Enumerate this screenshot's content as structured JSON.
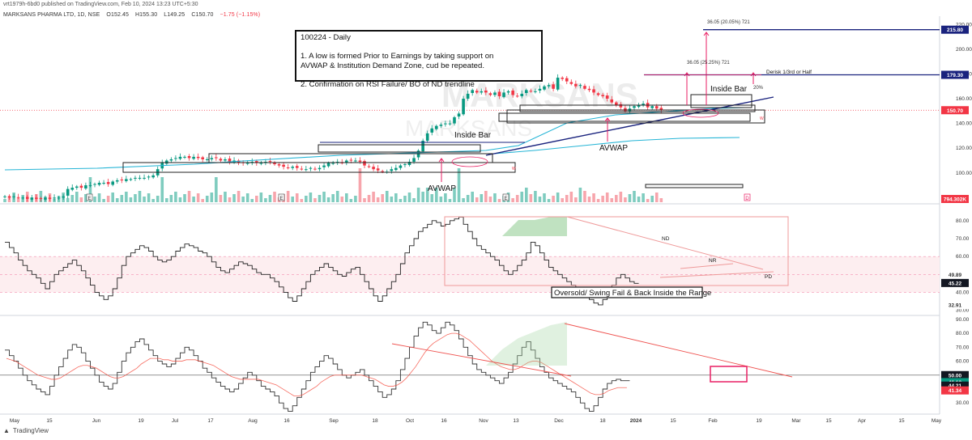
{
  "header": {
    "published": "vrt1979h-6bd0 published on TradingView.com, Feb 10, 2024 13:23 UTC+5:30",
    "symbol": "MARKSANS PHARMA LTD, 1D, NSE",
    "open": "O152.45",
    "high": "H155.30",
    "low": "L149.25",
    "close": "C150.70",
    "change": "−1.75 (−1.15%)"
  },
  "watermark": "MARKSANS",
  "note": {
    "title": "100224 - Daily",
    "line1a": "1. A low is formed Prior to Earnings by taking support on",
    "line1b": "AVWAP & Institution Demand Zone, cud be repeated.",
    "line2": "2. Confirmation on RSI Failure/ BO of ND trendline"
  },
  "annotations": {
    "inside_bar_left": "Inside Bar",
    "inside_bar_right": "Inside Bar",
    "avwap_left": "AVWAP",
    "avwap_right": "AVWAP",
    "target_top": "36.05 (20.05%) 721",
    "target_mid": "36.05 (25.25%) 721",
    "derisk": "Derisk 1/3rd or Half",
    "pct20": "20%",
    "nd": "ND",
    "nr": "NR",
    "pd": "PD",
    "oversold": "Oversold/ Swing Fail & Back Inside the Range",
    "earnings_marker": "E",
    "dividend_marker": "D",
    "w_marker": "W"
  },
  "footer": {
    "brand": "TradingView"
  },
  "colors": {
    "up": "#089981",
    "down": "#f23645",
    "vol_up": "#7fccbf",
    "vol_down": "#f7a5ac",
    "avwap": "#26b5d6",
    "trend": "#1a237e",
    "hline": "#1a237e",
    "pink": "#e91e63",
    "rsi_band": "#fdeef0",
    "rsi_line": "#222222",
    "ma_line": "#f44336",
    "green_fill": "#a5d6a7"
  },
  "chart_data": [
    {
      "type": "candlestick",
      "title": "MARKSANS PHARMA LTD, 1D, NSE",
      "x_ticks": [
        "May",
        "15",
        "Jun",
        "19",
        "Jul",
        "17",
        "Aug",
        "16",
        "Sep",
        "18",
        "Oct",
        "16",
        "Nov",
        "13",
        "Dec",
        "18",
        "2024",
        "15",
        "Feb",
        "19",
        "Mar",
        "15",
        "Apr",
        "15",
        "May"
      ],
      "y_ticks": [
        100.0,
        120.0,
        140.0,
        160.0,
        180.0,
        200.0,
        220.0
      ],
      "ylim": [
        75,
        230
      ],
      "price_labels": {
        "target": "215.80",
        "derisk_level": "179.30",
        "last_price": "150.70",
        "volume": "794.302K"
      },
      "closes": [
        81,
        80,
        81,
        80,
        80,
        79,
        80,
        79,
        79,
        80,
        79,
        80,
        80,
        81,
        87,
        88,
        89,
        88,
        90,
        90,
        91,
        92,
        92,
        91,
        93,
        94,
        94,
        95,
        95,
        96,
        96,
        96,
        97,
        98,
        103,
        108,
        110,
        111,
        112,
        113,
        113,
        112,
        113,
        112,
        111,
        111,
        112,
        112,
        110,
        111,
        109,
        110,
        108,
        108,
        108,
        109,
        108,
        108,
        109,
        109,
        107,
        106,
        105,
        104,
        105,
        104,
        103,
        103,
        104,
        103,
        104,
        106,
        108,
        108,
        109,
        108,
        110,
        110,
        110,
        109,
        106,
        105,
        103,
        102,
        101,
        101,
        103,
        104,
        106,
        107,
        109,
        112,
        118,
        126,
        132,
        136,
        138,
        139,
        140,
        140,
        145,
        148,
        160,
        164,
        167,
        165,
        166,
        165,
        163,
        165,
        162,
        165,
        166,
        163,
        162,
        164,
        167,
        166,
        166,
        168,
        170,
        171,
        168,
        177,
        176,
        174,
        172,
        170,
        171,
        168,
        167,
        165,
        163,
        162,
        160,
        157,
        155,
        153,
        150,
        152,
        154,
        155,
        156,
        153,
        154,
        152,
        150.7
      ],
      "volume": "relative bars per session"
    },
    {
      "type": "line",
      "name": "RSI",
      "y_ticks": [
        30.0,
        40.0,
        50.0,
        60.0,
        70.0,
        80.0
      ],
      "ylim": [
        28,
        84
      ],
      "band": [
        40,
        60
      ],
      "last_labels": {
        "upper": "49.89",
        "value": "45.22",
        "lower": "32.91"
      },
      "values": [
        68,
        65,
        62,
        58,
        55,
        52,
        50,
        48,
        45,
        42,
        46,
        50,
        52,
        54,
        56,
        58,
        55,
        52,
        48,
        44,
        40,
        38,
        36,
        38,
        42,
        48,
        55,
        60,
        62,
        64,
        66,
        65,
        63,
        60,
        58,
        57,
        58,
        60,
        63,
        65,
        67,
        66,
        65,
        63,
        62,
        60,
        57,
        54,
        52,
        51,
        53,
        55,
        57,
        56,
        55,
        53,
        51,
        50,
        50,
        48,
        46,
        43,
        40,
        37,
        35,
        38,
        42,
        46,
        50,
        52,
        54,
        56,
        54,
        52,
        50,
        49,
        51,
        53,
        54,
        50,
        46,
        42,
        38,
        35,
        38,
        42,
        46,
        50,
        56,
        62,
        66,
        70,
        74,
        76,
        78,
        80,
        79,
        77,
        78,
        80,
        81,
        82,
        78,
        74,
        70,
        66,
        64,
        62,
        60,
        58,
        55,
        52,
        50,
        52,
        55,
        58,
        62,
        68,
        66,
        62,
        58,
        54,
        52,
        50,
        48,
        46,
        44,
        42,
        40,
        38,
        36,
        34,
        33,
        36,
        40,
        44,
        48,
        50,
        48,
        46,
        45
      ]
    },
    {
      "type": "line",
      "name": "Oscillator",
      "y_ticks": [
        30.0,
        40.0,
        50.0,
        60.0,
        70.0,
        80.0,
        90.0
      ],
      "ylim": [
        22,
        94
      ],
      "last_labels": {
        "a": "50.00",
        "b": "46.13",
        "c": "44.21",
        "d": "41.34"
      },
      "series": [
        {
          "name": "osc",
          "values": [
            68,
            64,
            60,
            55,
            50,
            46,
            43,
            40,
            38,
            36,
            42,
            50,
            56,
            62,
            68,
            72,
            70,
            66,
            60,
            55,
            50,
            45,
            42,
            40,
            44,
            52,
            60,
            66,
            70,
            74,
            76,
            72,
            68,
            64,
            60,
            58,
            56,
            58,
            62,
            66,
            70,
            68,
            64,
            60,
            55,
            52,
            48,
            45,
            42,
            40,
            38,
            40,
            44,
            48,
            52,
            50,
            46,
            42,
            40,
            38,
            35,
            30,
            26,
            24,
            28,
            34,
            40,
            46,
            52,
            56,
            60,
            64,
            62,
            58,
            54,
            50,
            48,
            50,
            52,
            54,
            50,
            46,
            42,
            38,
            34,
            36,
            40,
            46,
            54,
            62,
            70,
            78,
            84,
            88,
            86,
            82,
            80,
            84,
            88,
            86,
            82,
            76,
            70,
            64,
            58,
            54,
            52,
            50,
            48,
            46,
            44,
            48,
            52,
            58,
            64,
            70,
            74,
            68,
            62,
            56,
            52,
            48,
            46,
            44,
            42,
            40,
            38,
            34,
            30,
            26,
            24,
            28,
            34,
            40,
            44,
            46,
            47,
            46,
            46
          ]
        },
        {
          "name": "ma",
          "values": [
            62,
            61,
            60,
            58,
            56,
            54,
            52,
            50,
            49,
            48,
            47,
            47,
            48,
            50,
            52,
            54,
            56,
            57,
            57,
            56,
            55,
            53,
            51,
            49,
            48,
            48,
            49,
            51,
            53,
            55,
            58,
            60,
            62,
            62,
            62,
            61,
            61,
            60,
            60,
            60,
            61,
            61,
            61,
            60,
            59,
            58,
            57,
            55,
            53,
            51,
            49,
            48,
            47,
            47,
            47,
            47,
            47,
            46,
            45,
            44,
            43,
            41,
            39,
            37,
            35,
            35,
            36,
            38,
            40,
            42,
            45,
            47,
            49,
            50,
            50,
            50,
            50,
            50,
            50,
            50,
            49,
            48,
            47,
            45,
            43,
            42,
            42,
            43,
            45,
            48,
            52,
            56,
            61,
            66,
            70,
            73,
            75,
            77,
            79,
            80,
            80,
            79,
            77,
            75,
            72,
            69,
            66,
            63,
            60,
            58,
            56,
            55,
            54,
            54,
            55,
            57,
            59,
            60,
            60,
            59,
            57,
            55,
            53,
            51,
            49,
            47,
            45,
            43,
            41,
            39,
            37,
            36,
            36,
            37,
            39,
            40,
            41,
            41,
            41
          ]
        }
      ]
    }
  ]
}
